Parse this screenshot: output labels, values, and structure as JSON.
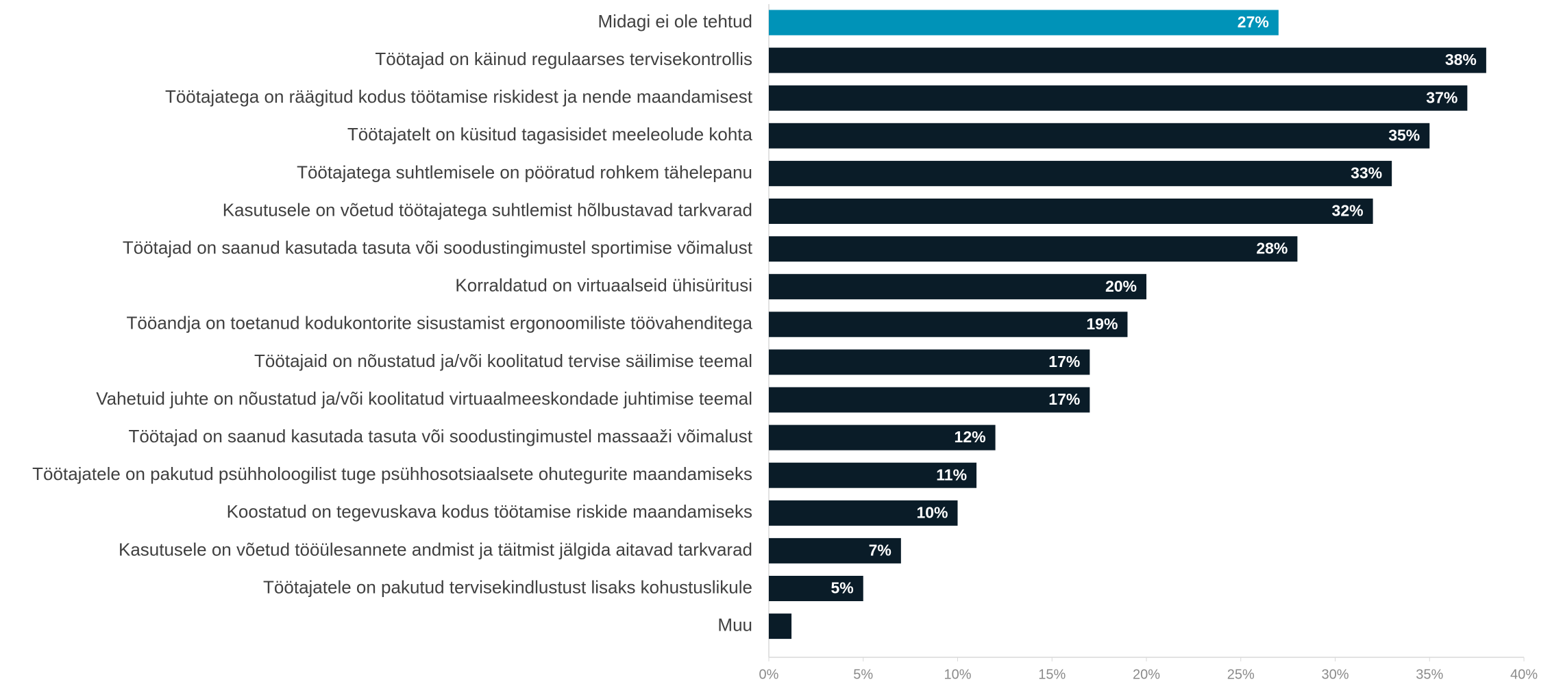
{
  "chart_data": {
    "type": "barh",
    "categories": [
      "Midagi ei ole tehtud",
      "Töötajad on käinud regulaarses tervisekontrollis",
      "Töötajatega on räägitud kodus töötamise riskidest ja nende maandamisest",
      "Töötajatelt on küsitud tagasisidet meeleolude kohta",
      "Töötajatega suhtlemisele on pööratud rohkem tähelepanu",
      "Kasutusele on võetud töötajatega suhtlemist hõlbustavad tarkvarad",
      "Töötajad on saanud kasutada tasuta või soodustingimustel sportimise võimalust",
      "Korraldatud on virtuaalseid ühisüritusi",
      "Tööandja on toetanud kodukontorite sisustamist ergonoomiliste töövahenditega",
      "Töötajaid on nõustatud ja/või koolitatud tervise säilimise teemal",
      "Vahetuid juhte on nõustatud ja/või koolitatud virtuaalmeeskondade juhtimise teemal",
      "Töötajad on saanud kasutada tasuta või soodustingimustel massaaži võimalust",
      "Töötajatele on pakutud psühholoogilist tuge psühhosotsiaalsete ohutegurite maandamiseks",
      "Koostatud on tegevuskava kodus töötamise riskide maandamiseks",
      "Kasutusele on võetud tööülesannete andmist ja täitmist jälgida aitavad tarkvarad",
      "Töötajatele on pakutud tervisekindlustust lisaks kohustuslikule",
      "Muu"
    ],
    "values": [
      27,
      38,
      37,
      35,
      33,
      32,
      28,
      20,
      19,
      17,
      17,
      12,
      11,
      10,
      7,
      5,
      1.2
    ],
    "value_labels": [
      "27%",
      "38%",
      "37%",
      "35%",
      "33%",
      "32%",
      "28%",
      "20%",
      "19%",
      "17%",
      "17%",
      "12%",
      "11%",
      "10%",
      "7%",
      "5%",
      null
    ],
    "colors": [
      "#0093b8",
      "#0a1c28",
      "#0a1c28",
      "#0a1c28",
      "#0a1c28",
      "#0a1c28",
      "#0a1c28",
      "#0a1c28",
      "#0a1c28",
      "#0a1c28",
      "#0a1c28",
      "#0a1c28",
      "#0a1c28",
      "#0a1c28",
      "#0a1c28",
      "#0a1c28",
      "#0a1c28"
    ],
    "xlim": [
      0,
      40
    ],
    "xticks": [
      {
        "value": 0,
        "label": "0%"
      },
      {
        "value": 5,
        "label": "5%"
      },
      {
        "value": 10,
        "label": "10%"
      },
      {
        "value": 15,
        "label": "15%"
      },
      {
        "value": 20,
        "label": "20%"
      },
      {
        "value": 25,
        "label": "25%"
      },
      {
        "value": 30,
        "label": "30%"
      },
      {
        "value": 35,
        "label": "35%"
      },
      {
        "value": 40,
        "label": "40%"
      }
    ]
  }
}
